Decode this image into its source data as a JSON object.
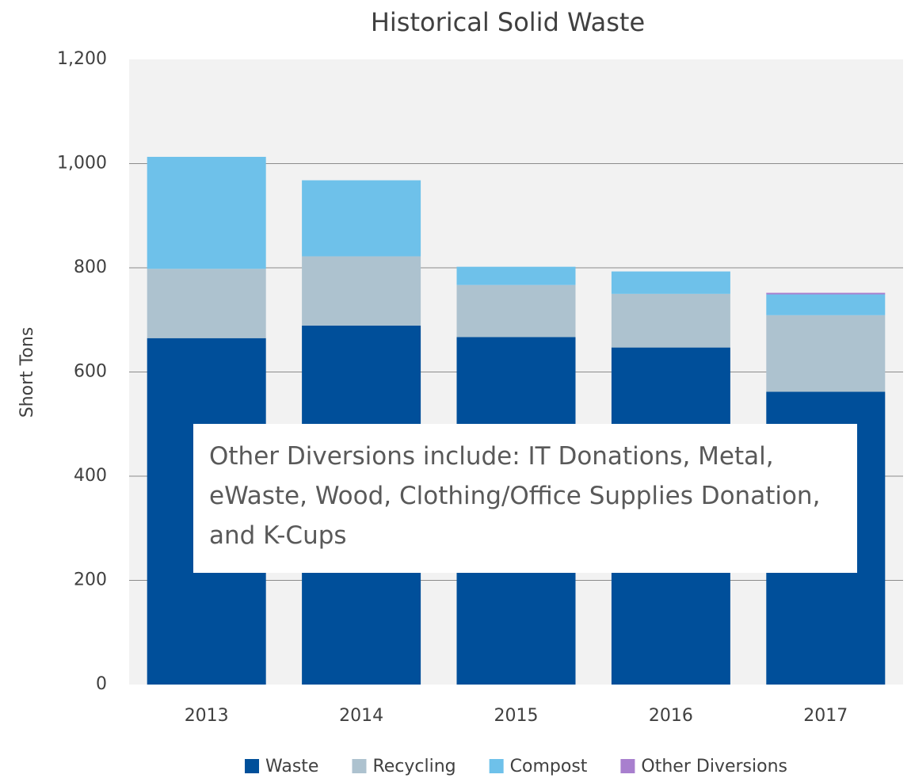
{
  "chart_data": {
    "type": "stacked_bar",
    "title": "Historical Solid Waste",
    "y_label": "Short Tons",
    "categories": [
      "2013",
      "2014",
      "2015",
      "2016",
      "2017"
    ],
    "series": [
      {
        "name": "Waste",
        "color": "#004f9a",
        "values": [
          665,
          689,
          667,
          647,
          562
        ]
      },
      {
        "name": "Recycling",
        "color": "#adc2cf",
        "values": [
          133,
          133,
          100,
          103,
          147
        ]
      },
      {
        "name": "Compost",
        "color": "#6ec1ea",
        "values": [
          215,
          146,
          35,
          43,
          40
        ]
      },
      {
        "name": "Other Diversions",
        "color": "#a87fce",
        "values": [
          0,
          0,
          0,
          0,
          3
        ]
      }
    ],
    "ylim": [
      0,
      1200
    ],
    "yticks": [
      0,
      200,
      400,
      600,
      800,
      {
        "value": 1000,
        "label": "1,000"
      },
      {
        "value": 1200,
        "label": "1,200"
      }
    ],
    "grid": true,
    "legend": "bottom",
    "annotation": "Other Diversions include: IT Donations, Metal, eWaste, Wood, Clothing/Office Supplies Donation, and K-Cups"
  }
}
